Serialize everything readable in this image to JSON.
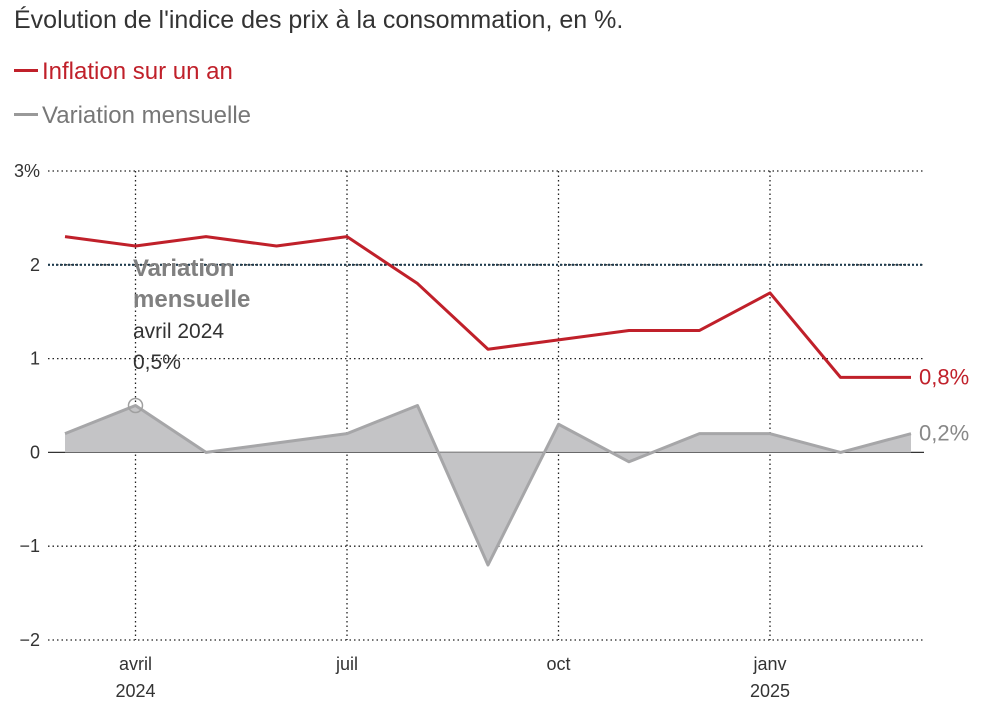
{
  "title": "Évolution de l'indice des prix à la consommation, en %.",
  "colors": {
    "inflation": "#c0202a",
    "monthly": "#a6a6a8",
    "monthly_fill": "#c4c4c6",
    "target": "#1f3b4d",
    "grid": "#222222"
  },
  "legend": [
    {
      "label": "Inflation sur un an",
      "color": "#c0202a"
    },
    {
      "label": "Variation mensuelle",
      "color": "#999999"
    }
  ],
  "annotation": {
    "title_line1": "Variation",
    "title_line2": "mensuelle",
    "date": "avril 2024",
    "value": "0,5%"
  },
  "end_labels": {
    "inflation": "0,8%",
    "monthly": "0,2%"
  },
  "chart_data": {
    "type": "line",
    "x": [
      "2024-03",
      "2024-04",
      "2024-05",
      "2024-06",
      "2024-07",
      "2024-08",
      "2024-09",
      "2024-10",
      "2024-11",
      "2024-12",
      "2025-01",
      "2025-02",
      "2025-03"
    ],
    "series": [
      {
        "name": "Inflation sur un an",
        "values": [
          2.3,
          2.2,
          2.3,
          2.2,
          2.3,
          1.8,
          1.1,
          1.2,
          1.3,
          1.3,
          1.7,
          0.8,
          0.8
        ]
      },
      {
        "name": "Variation mensuelle",
        "values": [
          0.2,
          0.5,
          0.0,
          0.1,
          0.2,
          0.5,
          -1.2,
          0.3,
          -0.1,
          0.2,
          0.2,
          0.0,
          0.2
        ]
      }
    ],
    "reference_line": 2,
    "ylim": [
      -2,
      3
    ],
    "y_ticks": [
      {
        "value": 3,
        "label": "3%"
      },
      {
        "value": 2,
        "label": "2"
      },
      {
        "value": 1,
        "label": "1"
      },
      {
        "value": 0,
        "label": "0"
      },
      {
        "value": -1,
        "label": "−1"
      },
      {
        "value": -2,
        "label": "−2"
      }
    ],
    "x_ticks": [
      {
        "at": "2024-04",
        "label": "avril",
        "sublabel": "2024"
      },
      {
        "at": "2024-07",
        "label": "juil",
        "sublabel": ""
      },
      {
        "at": "2024-10",
        "label": "oct",
        "sublabel": ""
      },
      {
        "at": "2025-01",
        "label": "janv",
        "sublabel": "2025"
      }
    ],
    "grid": true
  }
}
